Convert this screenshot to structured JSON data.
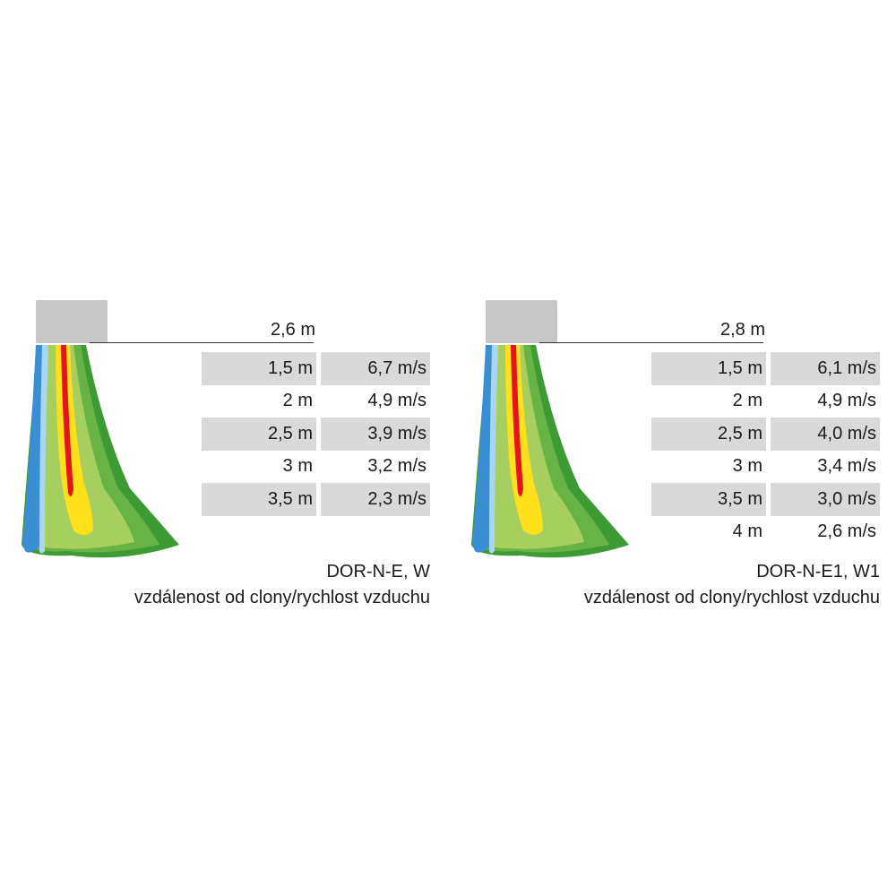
{
  "colors": {
    "unit_body": "#c7c7c7",
    "row_shade": "#d9d9d9",
    "plume_blue": "#3a8fd4",
    "plume_light_blue": "#a9d6f0",
    "plume_green_dark": "#3d9a35",
    "plume_green": "#67b345",
    "plume_green_light": "#a6cf5f",
    "plume_yellow": "#ffe01a",
    "plume_red": "#e3141b"
  },
  "panels": [
    {
      "height_label": "2,6 m",
      "rows": [
        {
          "distance": "1,5 m",
          "speed": "6,7 m/s",
          "shaded": true
        },
        {
          "distance": "2 m",
          "speed": "4,9 m/s",
          "shaded": false
        },
        {
          "distance": "2,5 m",
          "speed": "3,9 m/s",
          "shaded": true
        },
        {
          "distance": "3 m",
          "speed": "3,2 m/s",
          "shaded": false
        },
        {
          "distance": "3,5 m",
          "speed": "2,3 m/s",
          "shaded": true
        }
      ],
      "caption_model": "DOR-N-E, W",
      "caption_desc": "vzdálenost od clony/rychlost vzduchu"
    },
    {
      "height_label": "2,8 m",
      "rows": [
        {
          "distance": "1,5 m",
          "speed": "6,1 m/s",
          "shaded": true
        },
        {
          "distance": "2 m",
          "speed": "4,9 m/s",
          "shaded": false
        },
        {
          "distance": "2,5 m",
          "speed": "4,0 m/s",
          "shaded": true
        },
        {
          "distance": "3 m",
          "speed": "3,4 m/s",
          "shaded": false
        },
        {
          "distance": "3,5 m",
          "speed": "3,0 m/s",
          "shaded": true
        },
        {
          "distance": "4 m",
          "speed": "2,6 m/s",
          "shaded": false
        }
      ],
      "caption_model": "DOR-N-E1, W1",
      "caption_desc": "vzdálenost od clony/rychlost vzduchu"
    }
  ]
}
